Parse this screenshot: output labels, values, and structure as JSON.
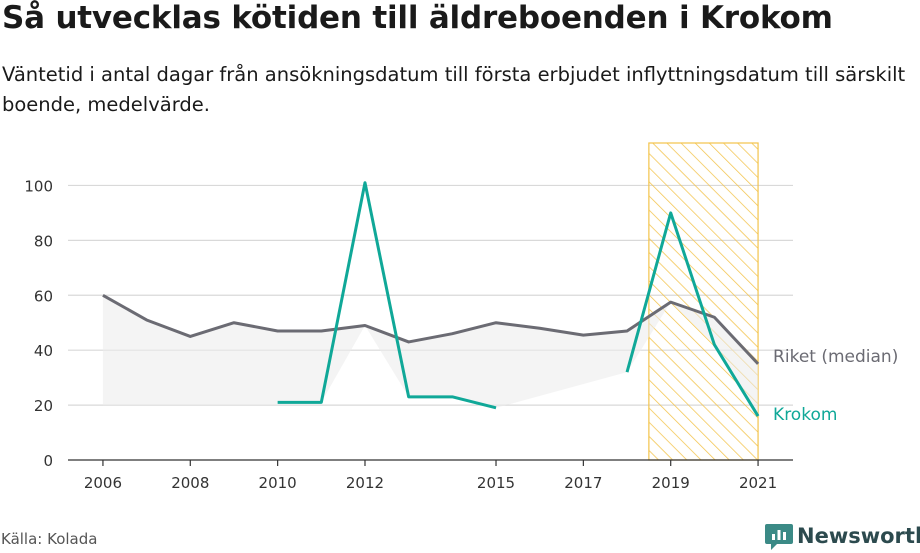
{
  "header": {
    "title": "Så utvecklas kötiden till äldreboenden i Krokom",
    "subtitle": "Väntetid i antal dagar från ansökningsdatum till första erbjudet inflyttningsdatum till särskilt boende, medelvärde."
  },
  "footer": {
    "source": "Källa: Kolada",
    "brand": "Newsworthy",
    "brand_icon": "newsworthy-logo-icon"
  },
  "colors": {
    "riket": "#6b6b73",
    "krokom": "#10a898",
    "highlight": "#f3c34b",
    "grid": "#d9d9d9",
    "band": "#ebebeb"
  },
  "chart_data": {
    "type": "line",
    "ylim": [
      0,
      110
    ],
    "yticks": [
      0,
      20,
      40,
      60,
      80,
      100
    ],
    "xlim": [
      2005.2,
      2021.8
    ],
    "xticks": [
      2006,
      2008,
      2010,
      2012,
      2015,
      2017,
      2019,
      2021
    ],
    "highlight_range": [
      2018.5,
      2021
    ],
    "grid": true,
    "series": [
      {
        "name": "Riket (median)",
        "color": "#6b6b73",
        "points": [
          [
            2006,
            60
          ],
          [
            2007,
            51
          ],
          [
            2008,
            45
          ],
          [
            2009,
            50
          ],
          [
            2010,
            47
          ],
          [
            2011,
            47
          ],
          [
            2012,
            49
          ],
          [
            2013,
            43
          ],
          [
            2014,
            46
          ],
          [
            2015,
            50
          ],
          [
            2016,
            48
          ],
          [
            2017,
            45.5
          ],
          [
            2018,
            47
          ],
          [
            2019,
            57.5
          ],
          [
            2020,
            52
          ],
          [
            2021,
            35
          ]
        ]
      },
      {
        "name": "Krokom",
        "color": "#10a898",
        "segments": [
          [
            [
              2010,
              21
            ],
            [
              2011,
              21
            ],
            [
              2012,
              101
            ],
            [
              2013,
              23
            ],
            [
              2014,
              23
            ],
            [
              2015,
              19
            ]
          ],
          [
            [
              2018,
              32
            ],
            [
              2019,
              90
            ],
            [
              2020,
              42
            ],
            [
              2021,
              16
            ]
          ]
        ]
      }
    ]
  }
}
